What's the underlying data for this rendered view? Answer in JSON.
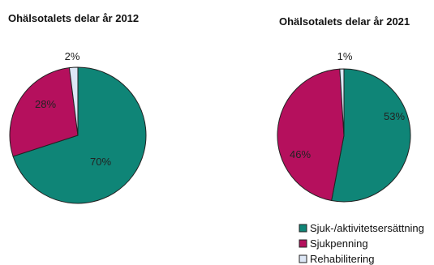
{
  "chart_data": [
    {
      "type": "pie",
      "title": "Ohälsotalets delar år 2012",
      "categories": [
        "Sjuk-/aktivitetsersättning",
        "Sjukpenning",
        "Rehabilitering"
      ],
      "values": [
        70,
        28,
        2
      ],
      "labels": [
        "70%",
        "28%",
        "2%"
      ]
    },
    {
      "type": "pie",
      "title": "Ohälsotalets delar år 2021",
      "categories": [
        "Sjuk-/aktivitetsersättning",
        "Sjukpenning",
        "Rehabilitering"
      ],
      "values": [
        53,
        46,
        1
      ],
      "labels": [
        "53%",
        "46%",
        "1%"
      ]
    }
  ],
  "legend": {
    "placement": "bottom-right",
    "items": [
      {
        "label": "Sjuk-/aktivitetsersättning",
        "color": "#0f8577"
      },
      {
        "label": "Sjukpenning",
        "color": "#b5105d"
      },
      {
        "label": "Rehabilitering",
        "color": "#dde7f6"
      }
    ]
  },
  "colors": {
    "slice_1": "#0f8577",
    "slice_2": "#b5105d",
    "slice_3": "#dde7f6",
    "outline": "#222222"
  }
}
